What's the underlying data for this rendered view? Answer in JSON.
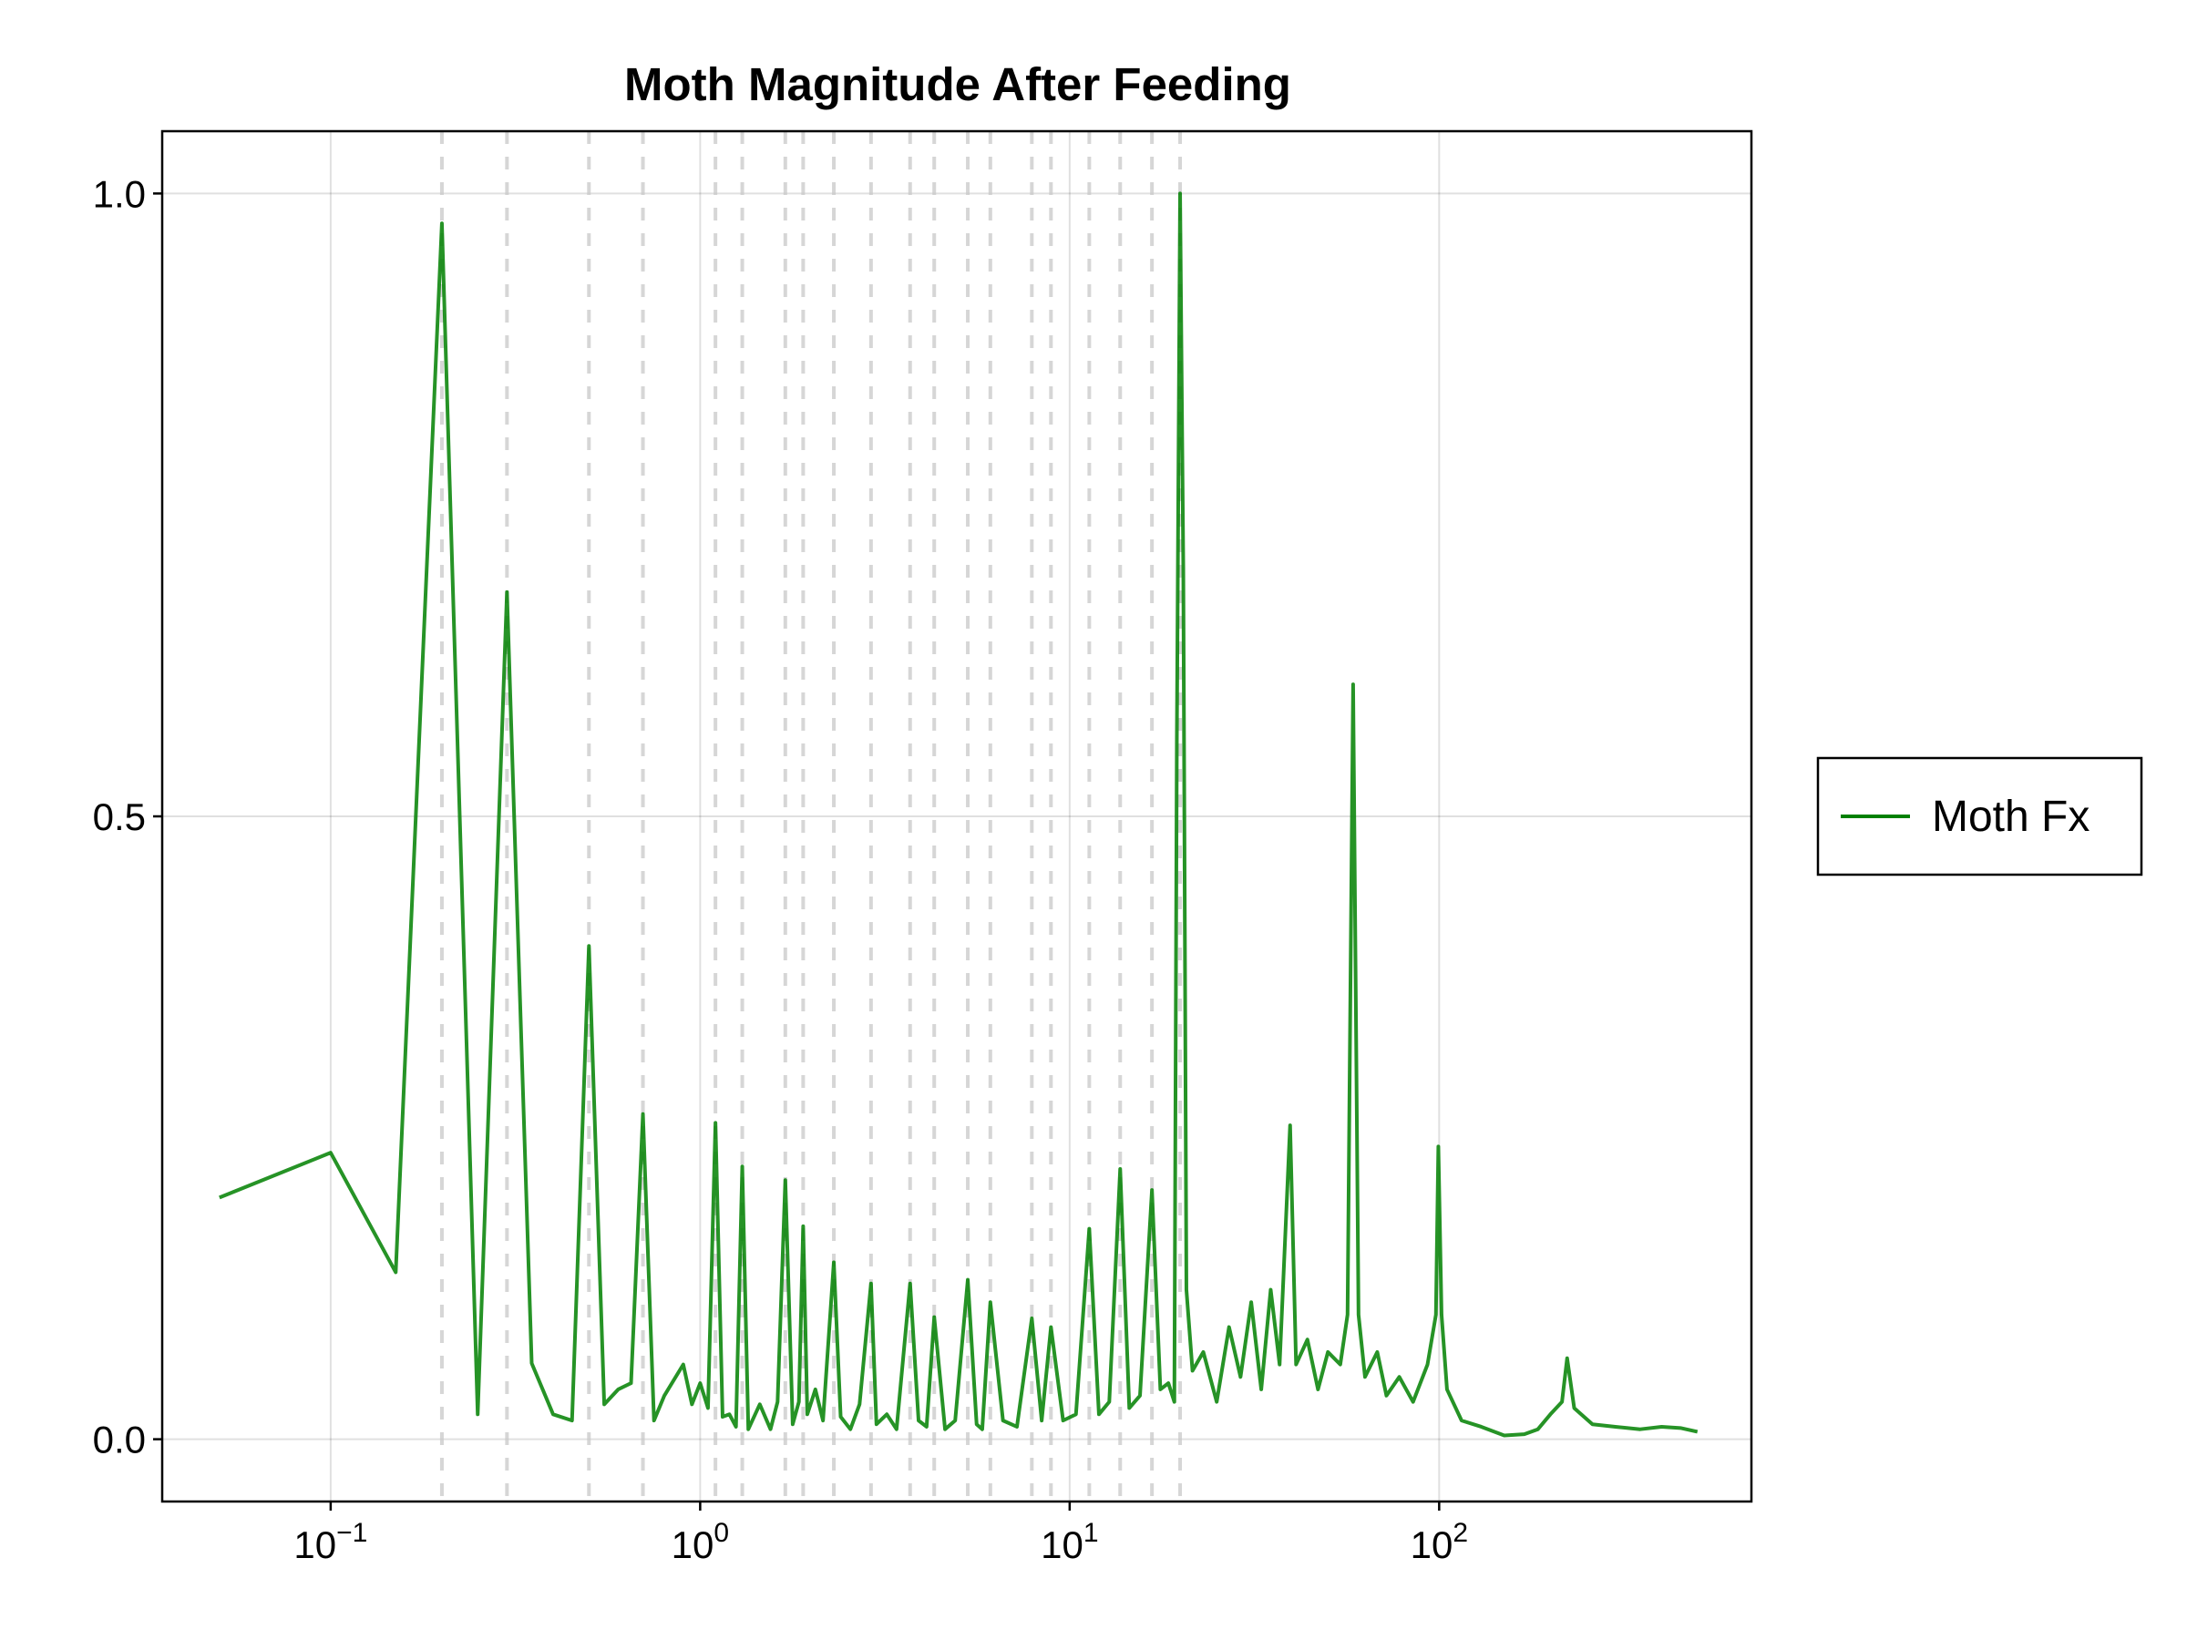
{
  "chart_data": {
    "type": "line",
    "title": "Moth Magnitude After Feeding",
    "xlabel": "",
    "ylabel": "",
    "xscale": "log10",
    "xlim": [
      0.035,
      700
    ],
    "ylim": [
      -0.05,
      1.05
    ],
    "grid": true,
    "legend_placement": "right",
    "x_tick_labels": [
      {
        "value": 0.1,
        "base": "10",
        "exp": "−1"
      },
      {
        "value": 1,
        "base": "10",
        "exp": "0"
      },
      {
        "value": 10,
        "base": "10",
        "exp": "1"
      },
      {
        "value": 100,
        "base": "10",
        "exp": "2"
      }
    ],
    "y_ticks": [
      {
        "value": 0.0,
        "label": "0.0"
      },
      {
        "value": 0.5,
        "label": "0.5"
      },
      {
        "value": 1.0,
        "label": "1.0"
      }
    ],
    "reference_lines_x": [
      0.2,
      0.3,
      0.5,
      0.7,
      1.1,
      1.3,
      1.7,
      1.9,
      2.3,
      2.9,
      3.7,
      4.3,
      5.3,
      6.1,
      7.9,
      8.9,
      11.3,
      13.7,
      16.7,
      19.9
    ],
    "series": [
      {
        "name": "Moth Fx",
        "color": "#008000",
        "points": [
          [
            0.05,
            0.194
          ],
          [
            0.1,
            0.23
          ],
          [
            0.15,
            0.134
          ],
          [
            0.2,
            0.976
          ],
          [
            0.25,
            0.02
          ],
          [
            0.3,
            0.68
          ],
          [
            0.35,
            0.061
          ],
          [
            0.4,
            0.02
          ],
          [
            0.45,
            0.015
          ],
          [
            0.5,
            0.396
          ],
          [
            0.55,
            0.028
          ],
          [
            0.6,
            0.04
          ],
          [
            0.65,
            0.045
          ],
          [
            0.7,
            0.261
          ],
          [
            0.75,
            0.015
          ],
          [
            0.8,
            0.035
          ],
          [
            0.9,
            0.06
          ],
          [
            0.95,
            0.028
          ],
          [
            1.0,
            0.045
          ],
          [
            1.05,
            0.025
          ],
          [
            1.1,
            0.254
          ],
          [
            1.15,
            0.018
          ],
          [
            1.2,
            0.02
          ],
          [
            1.25,
            0.01
          ],
          [
            1.3,
            0.219
          ],
          [
            1.35,
            0.008
          ],
          [
            1.45,
            0.028
          ],
          [
            1.55,
            0.008
          ],
          [
            1.62,
            0.03
          ],
          [
            1.7,
            0.208
          ],
          [
            1.78,
            0.012
          ],
          [
            1.85,
            0.03
          ],
          [
            1.9,
            0.171
          ],
          [
            1.95,
            0.02
          ],
          [
            2.05,
            0.04
          ],
          [
            2.15,
            0.015
          ],
          [
            2.3,
            0.142
          ],
          [
            2.4,
            0.018
          ],
          [
            2.55,
            0.008
          ],
          [
            2.7,
            0.028
          ],
          [
            2.9,
            0.125
          ],
          [
            3.0,
            0.012
          ],
          [
            3.2,
            0.02
          ],
          [
            3.4,
            0.008
          ],
          [
            3.7,
            0.125
          ],
          [
            3.9,
            0.015
          ],
          [
            4.1,
            0.01
          ],
          [
            4.3,
            0.098
          ],
          [
            4.6,
            0.008
          ],
          [
            4.9,
            0.015
          ],
          [
            5.3,
            0.128
          ],
          [
            5.6,
            0.012
          ],
          [
            5.8,
            0.008
          ],
          [
            6.1,
            0.11
          ],
          [
            6.6,
            0.015
          ],
          [
            7.2,
            0.01
          ],
          [
            7.9,
            0.097
          ],
          [
            8.4,
            0.015
          ],
          [
            8.9,
            0.09
          ],
          [
            9.6,
            0.015
          ],
          [
            10.4,
            0.02
          ],
          [
            11.3,
            0.169
          ],
          [
            12.0,
            0.02
          ],
          [
            12.8,
            0.03
          ],
          [
            13.7,
            0.217
          ],
          [
            14.5,
            0.025
          ],
          [
            15.5,
            0.035
          ],
          [
            16.7,
            0.2
          ],
          [
            17.6,
            0.04
          ],
          [
            18.5,
            0.045
          ],
          [
            19.2,
            0.03
          ],
          [
            19.5,
            0.56
          ],
          [
            19.9,
            1.0
          ],
          [
            20.3,
            0.7
          ],
          [
            20.7,
            0.12
          ],
          [
            21.5,
            0.055
          ],
          [
            23.0,
            0.07
          ],
          [
            25.0,
            0.03
          ],
          [
            27.0,
            0.09
          ],
          [
            29.0,
            0.05
          ],
          [
            31.0,
            0.11
          ],
          [
            33.0,
            0.04
          ],
          [
            35.0,
            0.12
          ],
          [
            37.0,
            0.06
          ],
          [
            39.5,
            0.252
          ],
          [
            41.0,
            0.06
          ],
          [
            44.0,
            0.08
          ],
          [
            47.0,
            0.04
          ],
          [
            50.0,
            0.07
          ],
          [
            54.0,
            0.06
          ],
          [
            56.5,
            0.1
          ],
          [
            58.5,
            0.606
          ],
          [
            60.5,
            0.1
          ],
          [
            63.0,
            0.05
          ],
          [
            68.0,
            0.07
          ],
          [
            72.0,
            0.035
          ],
          [
            78.0,
            0.05
          ],
          [
            85.0,
            0.03
          ],
          [
            93.0,
            0.06
          ],
          [
            98.0,
            0.1
          ],
          [
            99.5,
            0.235
          ],
          [
            101.5,
            0.1
          ],
          [
            105.0,
            0.04
          ],
          [
            115.0,
            0.015
          ],
          [
            130.0,
            0.01
          ],
          [
            150.0,
            0.003
          ],
          [
            170.0,
            0.004
          ],
          [
            185.0,
            0.008
          ],
          [
            200.0,
            0.02
          ],
          [
            215.0,
            0.03
          ],
          [
            222.0,
            0.065
          ],
          [
            232.0,
            0.025
          ],
          [
            260.0,
            0.012
          ],
          [
            300.0,
            0.01
          ],
          [
            350.0,
            0.008
          ],
          [
            400.0,
            0.01
          ],
          [
            450.0,
            0.009
          ],
          [
            500.0,
            0.006
          ]
        ]
      }
    ]
  }
}
